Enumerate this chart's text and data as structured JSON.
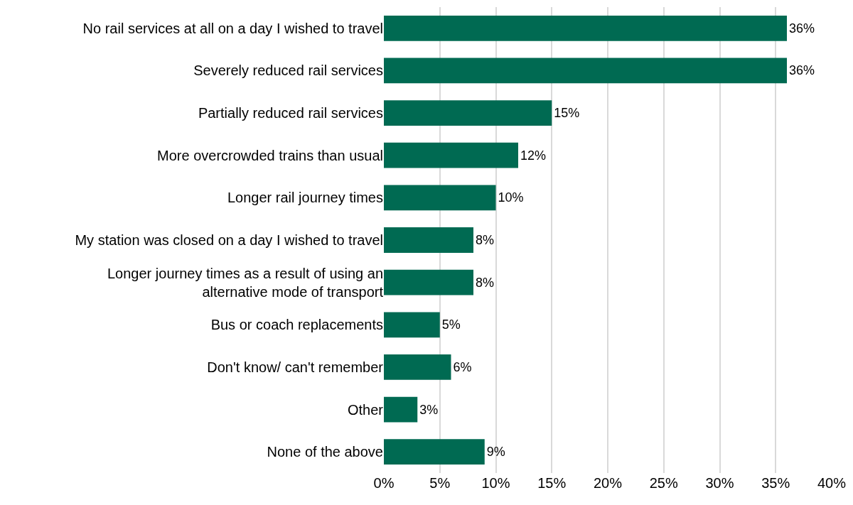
{
  "chart_data": {
    "type": "bar",
    "orientation": "horizontal",
    "categories": [
      "No rail services at all on a day I wished to travel",
      "Severely reduced rail services",
      "Partially reduced rail services",
      "More overcrowded trains than usual",
      "Longer rail journey times",
      "My station was closed on a day I wished to travel",
      "Longer journey times as a result of using an alternative mode of transport",
      "Bus or coach replacements",
      "Don't know/ can't remember",
      "Other",
      "None of the above"
    ],
    "values": [
      36,
      36,
      15,
      12,
      10,
      8,
      8,
      5,
      6,
      3,
      9
    ],
    "value_labels": [
      "36%",
      "36%",
      "15%",
      "12%",
      "10%",
      "8%",
      "8%",
      "5%",
      "6%",
      "3%",
      "9%"
    ],
    "color": "#006a52",
    "xlim": [
      0,
      40
    ],
    "xticks": [
      {
        "value": 0,
        "label": "0%"
      },
      {
        "value": 5,
        "label": "5%"
      },
      {
        "value": 10,
        "label": "10%"
      },
      {
        "value": 15,
        "label": "15%"
      },
      {
        "value": 20,
        "label": "20%"
      },
      {
        "value": 25,
        "label": "25%"
      },
      {
        "value": 30,
        "label": "30%"
      },
      {
        "value": 35,
        "label": "35%"
      },
      {
        "value": 40,
        "label": "40%"
      }
    ],
    "grid": "x",
    "legend": false
  }
}
